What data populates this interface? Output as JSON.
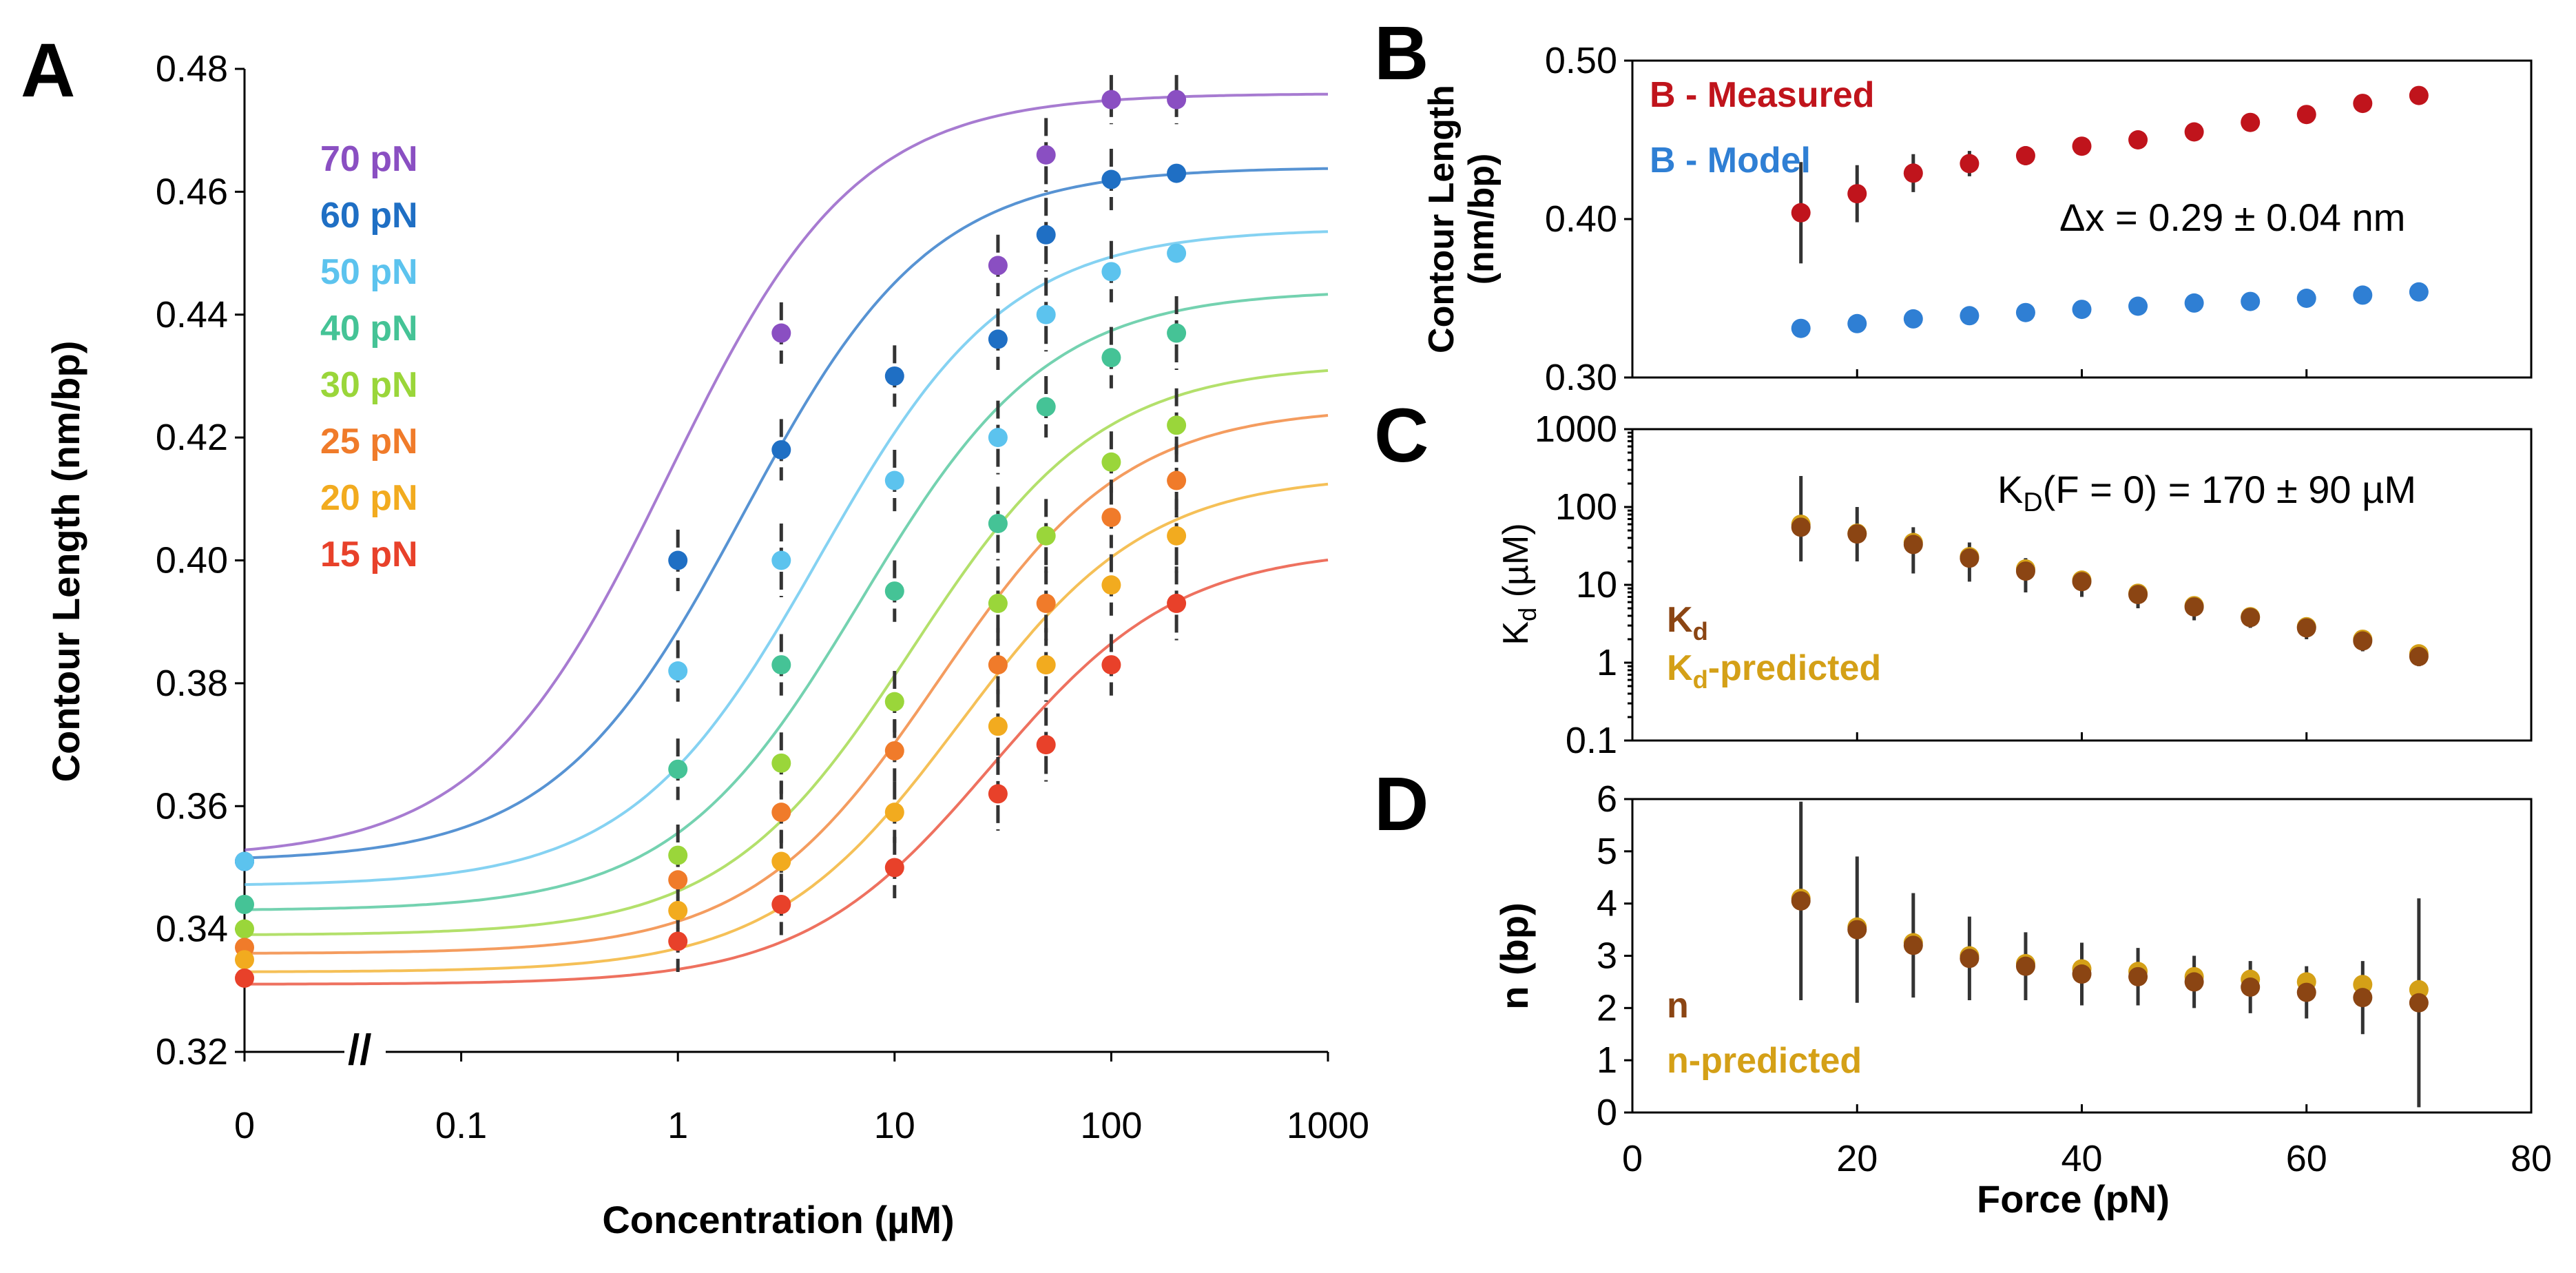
{
  "chart_data": [
    {
      "panel": "A",
      "type": "scatter",
      "xlabel": "Concentration (µM)",
      "ylabel": "Contour Length (nm/bp)",
      "xscale": "log (with break; first point at 0)",
      "x_tick_labels": [
        "0",
        "0.1",
        "1",
        "10",
        "100",
        "1000"
      ],
      "y_tick_labels": [
        "0.32",
        "0.34",
        "0.36",
        "0.38",
        "0.40",
        "0.42",
        "0.44",
        "0.46",
        "0.48"
      ],
      "ylim": [
        0.32,
        0.48
      ],
      "x_values": [
        0,
        1,
        3,
        10,
        30,
        50,
        100,
        200
      ],
      "fit_curves": "Hill-type binding fits, one per force",
      "legend_position": "top-left",
      "series": [
        {
          "name": "70 pN",
          "color": "#8a4fc2",
          "values": [
            0.351,
            null,
            0.437,
            null,
            0.448,
            0.466,
            0.475,
            0.475
          ],
          "errors": [
            0,
            0,
            0.005,
            0,
            0.005,
            0.006,
            0.004,
            0.004
          ],
          "fit": {
            "lo": 0.3515,
            "hi": 0.476,
            "kd": 0.9
          }
        },
        {
          "name": "60 pN",
          "color": "#1f6fc4",
          "values": [
            0.351,
            0.4,
            0.418,
            0.43,
            0.436,
            0.453,
            0.462,
            0.463
          ],
          "errors": [
            0,
            0.005,
            0.005,
            0.005,
            0.005,
            0.006,
            0.005,
            0
          ],
          "fit": {
            "lo": 0.351,
            "hi": 0.464,
            "kd": 2
          }
        },
        {
          "name": "50 pN",
          "color": "#5cc3ee",
          "values": [
            0.351,
            0.382,
            0.4,
            0.413,
            0.42,
            0.44,
            0.447,
            0.45
          ],
          "errors": [
            0,
            0.005,
            0.006,
            0.005,
            0.006,
            0.006,
            0.005,
            0
          ],
          "fit": {
            "lo": 0.347,
            "hi": 0.454,
            "kd": 4.5
          }
        },
        {
          "name": "40 pN",
          "color": "#45c396",
          "values": [
            0.344,
            0.366,
            0.383,
            0.395,
            0.406,
            0.425,
            0.433,
            0.437
          ],
          "errors": [
            0,
            0.005,
            0.005,
            0.005,
            0.006,
            0.005,
            0.005,
            0.006
          ],
          "fit": {
            "lo": 0.343,
            "hi": 0.444,
            "kd": 7
          }
        },
        {
          "name": "30 pN",
          "color": "#9ad63a",
          "values": [
            0.34,
            0.352,
            0.367,
            0.377,
            0.393,
            0.404,
            0.416,
            0.422
          ],
          "errors": [
            0,
            0.005,
            0.005,
            0.005,
            0.006,
            0.006,
            0.005,
            0.006
          ],
          "fit": {
            "lo": 0.339,
            "hi": 0.432,
            "kd": 12
          }
        },
        {
          "name": "25 pN",
          "color": "#f07b2a",
          "values": [
            0.337,
            0.348,
            0.359,
            0.369,
            0.383,
            0.393,
            0.407,
            0.413
          ],
          "errors": [
            0,
            0.005,
            0.005,
            0.005,
            0.006,
            0.006,
            0.005,
            0.006
          ],
          "fit": {
            "lo": 0.336,
            "hi": 0.425,
            "kd": 16
          }
        },
        {
          "name": "20 pN",
          "color": "#f2ab1f",
          "values": [
            0.335,
            0.343,
            0.351,
            0.359,
            0.373,
            0.383,
            0.396,
            0.404
          ],
          "errors": [
            0,
            0.005,
            0.005,
            0.005,
            0.006,
            0.006,
            0.005,
            0.006
          ],
          "fit": {
            "lo": 0.333,
            "hi": 0.414,
            "kd": 20
          }
        },
        {
          "name": "15 pN",
          "color": "#e8412a",
          "values": [
            0.332,
            0.338,
            0.344,
            0.35,
            0.362,
            0.37,
            0.383,
            0.393
          ],
          "errors": [
            0,
            0.005,
            0.005,
            0.005,
            0.006,
            0.006,
            0.005,
            0.006
          ],
          "fit": {
            "lo": 0.331,
            "hi": 0.402,
            "kd": 28
          }
        }
      ]
    },
    {
      "panel": "B",
      "type": "scatter",
      "xlabel": "",
      "ylabel": "Contour Length (nm/bp)",
      "y_tick_labels": [
        "0.30",
        "0.40",
        "0.50"
      ],
      "ylim": [
        0.3,
        0.5
      ],
      "xlim": [
        0,
        80
      ],
      "x": [
        15,
        20,
        25,
        30,
        35,
        40,
        45,
        50,
        55,
        60,
        65,
        70
      ],
      "annotation": "Δx = 0.29 ± 0.04 nm",
      "series": [
        {
          "name": "B - Measured",
          "color": "#c0141c",
          "values": [
            0.404,
            0.416,
            0.429,
            0.435,
            0.44,
            0.446,
            0.45,
            0.455,
            0.461,
            0.466,
            0.473,
            0.478
          ],
          "errors": [
            0.032,
            0.018,
            0.012,
            0.008,
            0.006,
            0.005,
            0.004,
            0.004,
            0.003,
            0.003,
            0.003,
            0.002
          ]
        },
        {
          "name": "B - Model",
          "color": "#2f7fd4",
          "values": [
            0.331,
            0.334,
            0.337,
            0.339,
            0.341,
            0.343,
            0.345,
            0.347,
            0.348,
            0.35,
            0.352,
            0.354
          ],
          "errors": []
        }
      ]
    },
    {
      "panel": "C",
      "type": "scatter",
      "ylabel_main": "K",
      "ylabel_sub": "d",
      "ylabel_unit": " (µM)",
      "yscale": "log",
      "y_tick_labels": [
        "1000",
        "100",
        "10",
        "1",
        "0.1"
      ],
      "ylim": [
        0.1,
        1000
      ],
      "xlim": [
        0,
        80
      ],
      "x": [
        15,
        20,
        25,
        30,
        35,
        40,
        45,
        50,
        55,
        60,
        65,
        70
      ],
      "annotation_main": "K",
      "annotation_sub": "D",
      "annotation_rest": "(F = 0) = 170 ± 90 µM",
      "series": [
        {
          "name": "K",
          "name_sub": "d",
          "name_rest": "",
          "color": "#8b4513",
          "values": [
            55,
            45,
            33,
            22,
            15,
            11,
            7.5,
            5.2,
            3.8,
            2.8,
            1.9,
            1.2
          ],
          "err_hi": [
            250,
            100,
            55,
            35,
            22,
            15,
            10,
            7,
            5,
            3.6,
            2.5,
            1.6
          ],
          "err_lo": [
            20,
            20,
            14,
            11,
            8,
            7,
            5,
            3.5,
            2.8,
            2,
            1.4,
            0.9
          ]
        },
        {
          "name": "K",
          "name_sub": "d",
          "name_rest": "-predicted",
          "color": "#d4a017",
          "values": [
            60,
            46,
            35,
            23,
            16,
            11.5,
            7.8,
            5.4,
            3.9,
            2.9,
            2.0,
            1.3
          ],
          "err_hi": [],
          "err_lo": []
        }
      ]
    },
    {
      "panel": "D",
      "type": "scatter",
      "xlabel": "Force (pN)",
      "ylabel": "n (bp)",
      "y_tick_labels": [
        "0",
        "1",
        "2",
        "3",
        "4",
        "5",
        "6"
      ],
      "x_tick_labels": [
        "0",
        "20",
        "40",
        "60",
        "80"
      ],
      "ylim": [
        0,
        6
      ],
      "xlim": [
        0,
        80
      ],
      "x": [
        15,
        20,
        25,
        30,
        35,
        40,
        45,
        50,
        55,
        60,
        65,
        70
      ],
      "series": [
        {
          "name": "n",
          "color": "#8b4513",
          "values": [
            4.05,
            3.5,
            3.2,
            2.95,
            2.8,
            2.65,
            2.6,
            2.5,
            2.4,
            2.3,
            2.2,
            2.1
          ],
          "errors": [
            1.9,
            1.4,
            1.0,
            0.8,
            0.65,
            0.6,
            0.55,
            0.5,
            0.5,
            0.5,
            0.7,
            2.0
          ]
        },
        {
          "name": "n-predicted",
          "color": "#d4a017",
          "values": [
            4.1,
            3.55,
            3.25,
            3.0,
            2.85,
            2.75,
            2.7,
            2.6,
            2.55,
            2.5,
            2.45,
            2.35
          ],
          "errors": []
        }
      ]
    }
  ],
  "panels": {
    "a": {
      "letter": "A",
      "xlabel": "Concentration (µM)",
      "ylabel": "Contour Length (nm/bp)",
      "break_mark": "//"
    },
    "b": {
      "letter": "B",
      "ylabel_1": "Contour Length",
      "ylabel_2": "(nm/bp)"
    },
    "c": {
      "letter": "C"
    },
    "d": {
      "letter": "D",
      "xlabel": "Force (pN)",
      "ylabel": "n (bp)"
    }
  }
}
